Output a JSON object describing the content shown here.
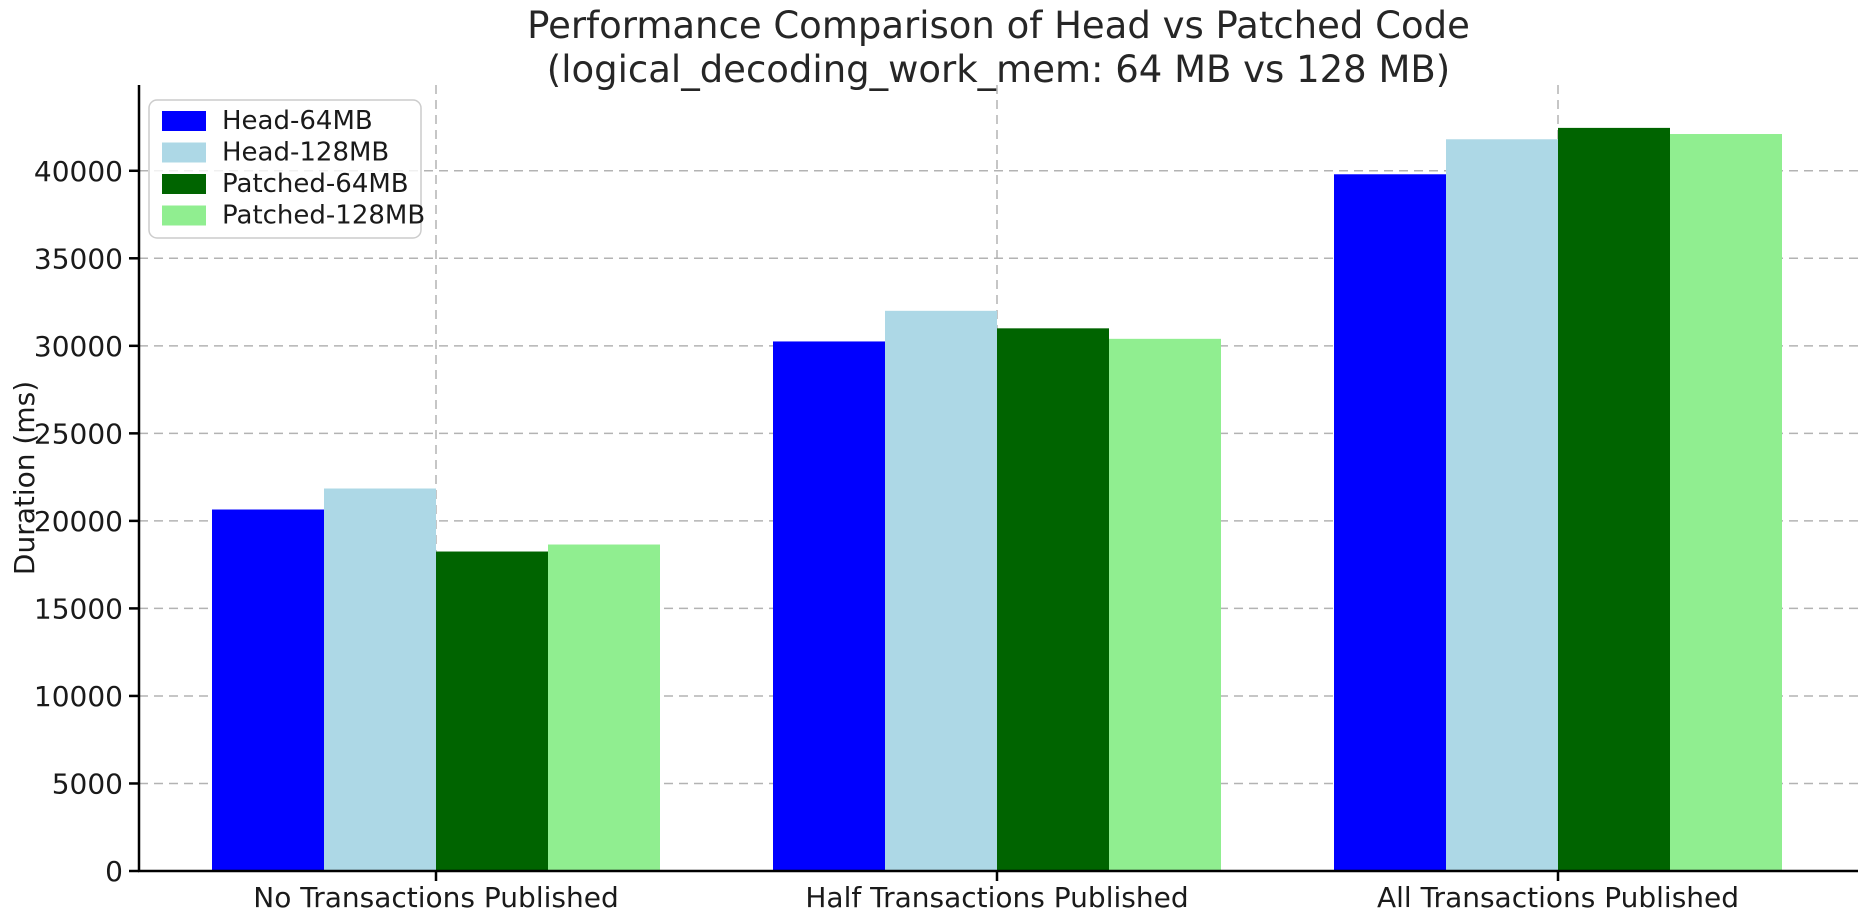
{
  "figure": {
    "title": "Performance Comparison of Head vs Patched Code",
    "subtitle": "(logical_decoding_work_mem: 64 MB vs 128 MB)"
  },
  "chart_data": {
    "type": "bar",
    "title": "Performance Comparison of Head vs Patched Code",
    "subtitle": "(logical_decoding_work_mem: 64 MB vs 128 MB)",
    "xlabel": "",
    "ylabel": "Duration (ms)",
    "categories": [
      "No Transactions Published",
      "Half Transactions Published",
      "All Transactions Published"
    ],
    "series": [
      {
        "name": "Head-64MB",
        "color": "#0000ff",
        "values": [
          20650,
          30250,
          39800
        ]
      },
      {
        "name": "Head-128MB",
        "color": "#add8e6",
        "values": [
          21850,
          32000,
          41800
        ]
      },
      {
        "name": "Patched-64MB",
        "color": "#006400",
        "values": [
          18250,
          31000,
          42450
        ]
      },
      {
        "name": "Patched-128MB",
        "color": "#90ee90",
        "values": [
          18650,
          30400,
          42100
        ]
      }
    ],
    "yticks": [
      0,
      5000,
      10000,
      15000,
      20000,
      25000,
      30000,
      35000,
      40000
    ],
    "ylim": [
      0,
      44900
    ],
    "grid": "dashed gridlines on both axes",
    "grid_color": "#b3b3b3",
    "legend_position": "upper left",
    "legend_frame": {
      "fill": "rgba(255,255,255,0.8)",
      "border": "#cccccc"
    },
    "axis_color": "#000000",
    "text_color": "#262626"
  }
}
